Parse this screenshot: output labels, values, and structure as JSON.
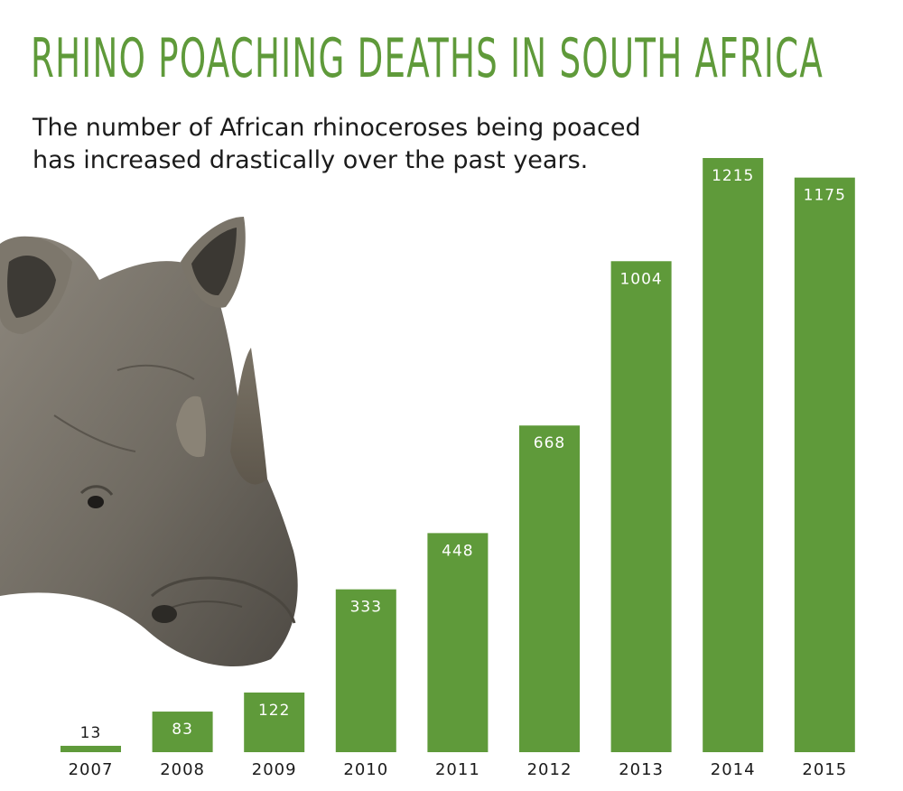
{
  "header": {
    "title": "RHINO POACHING DEATHS IN SOUTH AFRICA",
    "subtitle_line1": "The number of African rhinoceroses being poaced",
    "subtitle_line2": "has increased drastically over the past years."
  },
  "colors": {
    "bar": "#5f9a3a",
    "title": "#5f9a3a",
    "text": "#1b1b1b",
    "value_label_inside": "#ffffff"
  },
  "chart_data": {
    "type": "bar",
    "title": "RHINO POACHING DEATHS IN SOUTH AFRICA",
    "subtitle": "The number of African rhinoceroses being poaced has increased drastically over the past years.",
    "categories": [
      "2007",
      "2008",
      "2009",
      "2010",
      "2011",
      "2012",
      "2013",
      "2014",
      "2015"
    ],
    "values": [
      13,
      83,
      122,
      333,
      448,
      668,
      1004,
      1215,
      1175
    ],
    "xlabel": "",
    "ylabel": "",
    "ylim": [
      0,
      1215
    ],
    "grid": false,
    "legend": "none",
    "data_labels": true
  },
  "image": {
    "subject": "rhinoceros-head"
  }
}
